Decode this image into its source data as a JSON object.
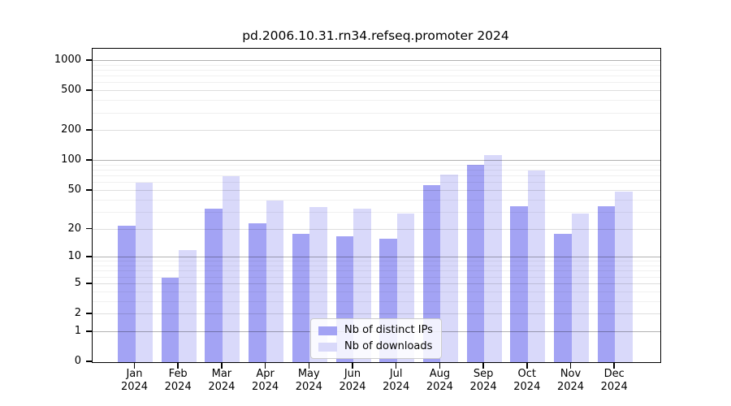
{
  "chart_data": {
    "type": "bar",
    "title": "pd.2006.10.31.rn34.refseq.promoter 2024",
    "year_label": "2024",
    "categories": [
      "Jan",
      "Feb",
      "Mar",
      "Apr",
      "May",
      "Jun",
      "Jul",
      "Aug",
      "Sep",
      "Oct",
      "Nov",
      "Dec"
    ],
    "series": [
      {
        "name": "Nb of distinct IPs",
        "color": "#a3a3f4",
        "values": [
          22,
          6,
          33,
          23,
          18,
          17,
          16,
          57,
          92,
          35,
          18,
          35
        ]
      },
      {
        "name": "Nb of downloads",
        "color": "#d9d9fa",
        "values": [
          60,
          12,
          70,
          40,
          34,
          33,
          29,
          73,
          114,
          80,
          29,
          49
        ]
      }
    ],
    "xlabel": "",
    "ylabel": "",
    "yscale": "log1p",
    "ylim": [
      0,
      1310
    ],
    "yticks": [
      1000,
      500,
      200,
      100,
      50,
      20,
      10,
      5,
      2,
      1,
      0
    ],
    "grid": true,
    "legend_position": "lower center",
    "colors": {
      "major_grid": "rgba(0,0,0,0.30)",
      "minor_grid": "rgba(0,0,0,0.13)",
      "faint_grid": "rgba(0,0,0,0.06)",
      "axis": "#000000"
    }
  }
}
